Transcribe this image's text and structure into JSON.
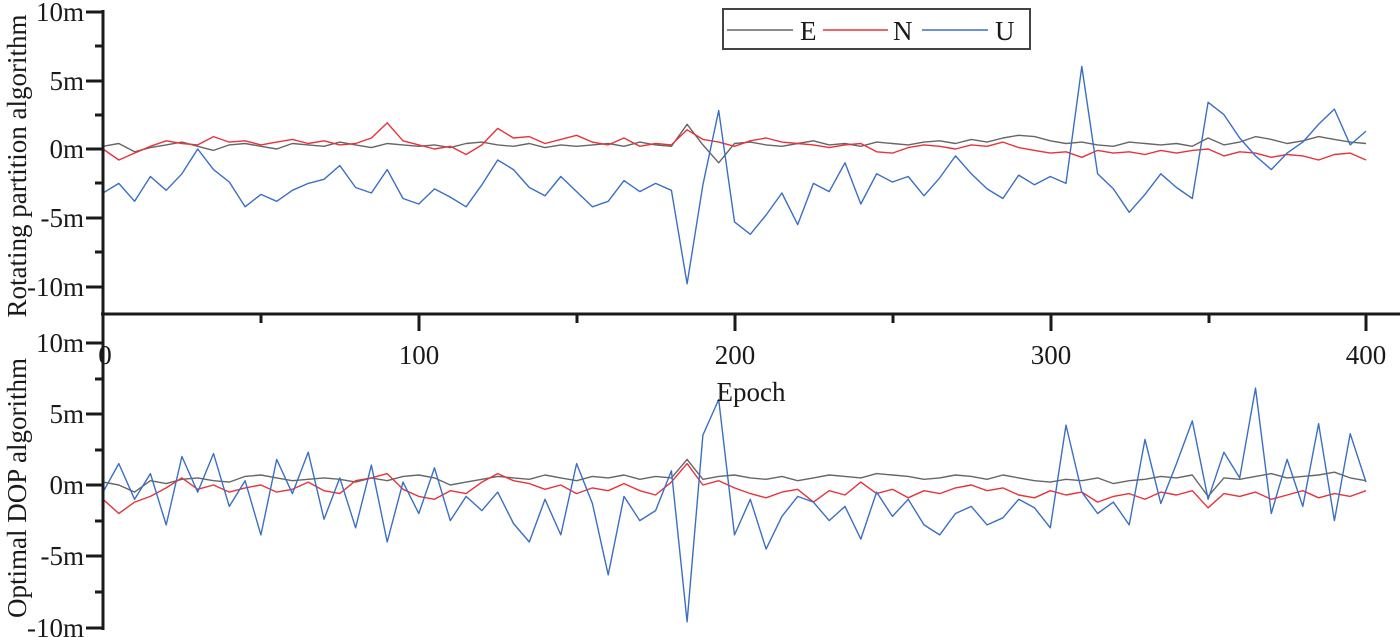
{
  "chart_data": [
    {
      "type": "line",
      "panel": "top",
      "title": "",
      "ylabel": "Rotating partition algorithm",
      "xlabel": "Epoch",
      "xlim": [
        0,
        400
      ],
      "ylim": [
        -12,
        10
      ],
      "yticks": [
        10,
        5,
        0,
        -5,
        -10
      ],
      "ytick_labels": [
        "10m",
        "5m",
        "0m",
        "-5m",
        "-10m"
      ],
      "xticks": [
        0,
        100,
        200,
        300,
        400
      ],
      "xtick_labels": [
        "0",
        "100",
        "200",
        "300",
        "400"
      ],
      "grid": false,
      "legend": {
        "position": "top-center",
        "entries": [
          "E",
          "N",
          "U"
        ]
      },
      "x": [
        0,
        5,
        10,
        15,
        20,
        25,
        30,
        35,
        40,
        45,
        50,
        55,
        60,
        65,
        70,
        75,
        80,
        85,
        90,
        95,
        100,
        105,
        110,
        115,
        120,
        125,
        130,
        135,
        140,
        145,
        150,
        155,
        160,
        165,
        170,
        175,
        180,
        185,
        190,
        195,
        200,
        205,
        210,
        215,
        220,
        225,
        230,
        235,
        240,
        245,
        250,
        255,
        260,
        265,
        270,
        275,
        280,
        285,
        290,
        295,
        300,
        305,
        310,
        315,
        320,
        325,
        330,
        335,
        340,
        345,
        350,
        355,
        360,
        365,
        370,
        375,
        380,
        385,
        390,
        395,
        400
      ],
      "series": [
        {
          "name": "E",
          "color": "#666666",
          "values": [
            0.2,
            0.4,
            -0.2,
            0.1,
            0.3,
            0.5,
            0.2,
            -0.1,
            0.3,
            0.4,
            0.2,
            0.0,
            0.4,
            0.3,
            0.2,
            0.5,
            0.3,
            0.1,
            0.4,
            0.3,
            0.2,
            0.3,
            0.1,
            0.4,
            0.5,
            0.3,
            0.2,
            0.4,
            0.1,
            0.3,
            0.2,
            0.3,
            0.4,
            0.2,
            0.5,
            0.3,
            0.2,
            1.8,
            0.3,
            -1.0,
            0.4,
            0.5,
            0.3,
            0.2,
            0.4,
            0.6,
            0.3,
            0.4,
            0.2,
            0.5,
            0.4,
            0.3,
            0.5,
            0.6,
            0.4,
            0.7,
            0.5,
            0.8,
            1.0,
            0.9,
            0.6,
            0.4,
            0.5,
            0.3,
            0.2,
            0.5,
            0.4,
            0.3,
            0.4,
            0.2,
            0.8,
            0.3,
            0.5,
            0.9,
            0.7,
            0.4,
            0.6,
            0.9,
            0.7,
            0.5,
            0.4
          ]
        },
        {
          "name": "N",
          "color": "#e8333b",
          "values": [
            0.0,
            -0.8,
            -0.3,
            0.2,
            0.6,
            0.4,
            0.3,
            0.9,
            0.5,
            0.6,
            0.3,
            0.5,
            0.7,
            0.4,
            0.6,
            0.3,
            0.4,
            0.8,
            1.9,
            0.6,
            0.3,
            0.0,
            0.2,
            -0.4,
            0.3,
            1.5,
            0.8,
            0.9,
            0.4,
            0.7,
            1.0,
            0.5,
            0.3,
            0.8,
            0.2,
            0.4,
            0.3,
            1.4,
            0.7,
            0.5,
            0.2,
            0.6,
            0.8,
            0.5,
            0.4,
            0.3,
            0.1,
            0.3,
            0.4,
            -0.2,
            -0.3,
            0.1,
            0.3,
            0.2,
            0.0,
            0.3,
            0.2,
            0.5,
            0.1,
            -0.1,
            -0.3,
            -0.2,
            -0.6,
            -0.1,
            -0.3,
            -0.2,
            -0.4,
            -0.1,
            -0.3,
            -0.1,
            0.0,
            -0.5,
            -0.2,
            -0.3,
            -0.6,
            -0.4,
            -0.5,
            -0.8,
            -0.4,
            -0.3,
            -0.8
          ]
        },
        {
          "name": "U",
          "color": "#3a6fc4",
          "values": [
            -3.2,
            -2.5,
            -3.8,
            -2.0,
            -3.0,
            -1.8,
            0.0,
            -1.5,
            -2.4,
            -4.2,
            -3.3,
            -3.8,
            -3.0,
            -2.5,
            -2.2,
            -1.2,
            -2.8,
            -3.2,
            -1.5,
            -3.6,
            -4.0,
            -2.9,
            -3.5,
            -4.2,
            -2.6,
            -0.8,
            -1.5,
            -2.8,
            -3.4,
            -2.0,
            -3.1,
            -4.2,
            -3.8,
            -2.3,
            -3.1,
            -2.5,
            -3.0,
            -9.8,
            -2.6,
            2.8,
            -5.3,
            -6.2,
            -4.8,
            -3.2,
            -5.5,
            -2.5,
            -3.1,
            -1.0,
            -4.0,
            -1.8,
            -2.4,
            -2.0,
            -3.4,
            -2.1,
            -0.5,
            -1.8,
            -2.9,
            -3.6,
            -1.9,
            -2.6,
            -2.0,
            -2.5,
            6.0,
            -1.8,
            -2.9,
            -4.6,
            -3.3,
            -1.8,
            -2.8,
            -3.6,
            3.4,
            2.5,
            0.8,
            -0.5,
            -1.5,
            -0.3,
            0.5,
            1.8,
            2.9,
            0.3,
            1.3
          ]
        }
      ]
    },
    {
      "type": "line",
      "panel": "bottom",
      "title": "",
      "ylabel": "Optimal DOP algorithm",
      "xlabel": "Epoch",
      "xlim": [
        0,
        400
      ],
      "ylim": [
        -10,
        10
      ],
      "yticks": [
        10,
        5,
        0,
        -5,
        -10
      ],
      "ytick_labels": [
        "10m",
        "5m",
        "0m",
        "-5m",
        "-10m"
      ],
      "grid": false,
      "x": [
        0,
        5,
        10,
        15,
        20,
        25,
        30,
        35,
        40,
        45,
        50,
        55,
        60,
        65,
        70,
        75,
        80,
        85,
        90,
        95,
        100,
        105,
        110,
        115,
        120,
        125,
        130,
        135,
        140,
        145,
        150,
        155,
        160,
        165,
        170,
        175,
        180,
        185,
        190,
        195,
        200,
        205,
        210,
        215,
        220,
        225,
        230,
        235,
        240,
        245,
        250,
        255,
        260,
        265,
        270,
        275,
        280,
        285,
        290,
        295,
        300,
        305,
        310,
        315,
        320,
        325,
        330,
        335,
        340,
        345,
        350,
        355,
        360,
        365,
        370,
        375,
        380,
        385,
        390,
        395,
        400
      ],
      "series": [
        {
          "name": "E",
          "color": "#666666",
          "values": [
            0.2,
            0.0,
            -0.5,
            0.3,
            0.1,
            0.4,
            0.5,
            0.3,
            0.2,
            0.6,
            0.7,
            0.5,
            0.3,
            0.4,
            0.5,
            0.4,
            0.2,
            0.5,
            0.3,
            0.6,
            0.7,
            0.5,
            0.0,
            0.2,
            0.4,
            0.6,
            0.5,
            0.4,
            0.7,
            0.5,
            0.3,
            0.6,
            0.5,
            0.7,
            0.4,
            0.6,
            0.5,
            1.8,
            0.4,
            0.6,
            0.7,
            0.5,
            0.4,
            0.6,
            0.3,
            0.5,
            0.7,
            0.6,
            0.5,
            0.8,
            0.7,
            0.6,
            0.4,
            0.5,
            0.7,
            0.6,
            0.4,
            0.7,
            0.5,
            0.3,
            0.2,
            0.4,
            0.3,
            0.5,
            0.1,
            0.3,
            0.4,
            0.6,
            0.5,
            0.7,
            -0.8,
            0.5,
            0.4,
            0.6,
            0.8,
            0.5,
            0.6,
            0.7,
            0.9,
            0.5,
            0.3
          ]
        },
        {
          "name": "N",
          "color": "#e8333b",
          "values": [
            -1.0,
            -2.0,
            -1.2,
            -0.8,
            -0.2,
            0.5,
            -0.3,
            0.0,
            -0.5,
            -0.2,
            0.0,
            -0.5,
            -0.3,
            0.2,
            -0.4,
            -0.6,
            0.3,
            0.5,
            0.8,
            -0.3,
            -0.8,
            -1.0,
            -0.4,
            -0.6,
            0.2,
            0.8,
            0.3,
            0.1,
            -0.3,
            0.0,
            -0.6,
            -0.2,
            -0.4,
            0.1,
            -0.4,
            -0.7,
            0.2,
            1.5,
            0.0,
            0.3,
            -0.2,
            -0.6,
            -0.9,
            -0.5,
            -0.3,
            -1.2,
            -0.4,
            -0.7,
            0.2,
            -0.6,
            -0.3,
            -0.9,
            -0.4,
            -0.6,
            -0.2,
            0.0,
            -0.4,
            -0.2,
            -0.7,
            -0.9,
            -0.4,
            -0.7,
            -0.5,
            -1.2,
            -0.8,
            -0.6,
            -1.0,
            -0.5,
            -0.7,
            -0.4,
            -1.6,
            -0.6,
            -0.8,
            -0.5,
            -1.0,
            -0.7,
            -0.4,
            -0.9,
            -0.6,
            -0.8,
            -0.4
          ]
        },
        {
          "name": "U",
          "color": "#3a6fc4",
          "values": [
            -0.5,
            1.5,
            -1.0,
            0.8,
            -2.8,
            2.0,
            -0.5,
            2.2,
            -1.5,
            0.3,
            -3.5,
            1.8,
            -0.6,
            2.3,
            -2.4,
            0.5,
            -3.0,
            1.4,
            -4.0,
            0.2,
            -2.0,
            1.2,
            -2.5,
            -0.8,
            -1.8,
            -0.5,
            -2.7,
            -4.0,
            -1.0,
            -3.5,
            1.5,
            -1.3,
            -6.3,
            -0.8,
            -2.5,
            -1.8,
            1.0,
            -9.6,
            3.5,
            6.0,
            -3.5,
            -1.0,
            -4.5,
            -2.2,
            -0.8,
            -1.2,
            -2.5,
            -1.5,
            -3.8,
            -0.5,
            -2.2,
            -1.0,
            -2.8,
            -3.5,
            -2.0,
            -1.5,
            -2.8,
            -2.3,
            -1.0,
            -1.6,
            -3.0,
            4.2,
            -0.5,
            -2.0,
            -1.2,
            -2.8,
            3.2,
            -1.3,
            1.5,
            4.5,
            -1.0,
            2.3,
            0.5,
            6.8,
            -2.0,
            1.8,
            -1.5,
            4.3,
            -2.5,
            3.6,
            0.2
          ]
        }
      ]
    }
  ],
  "figure": {
    "top_panel": {
      "ylabel": "Rotating partition algorithm"
    },
    "bottom_panel": {
      "ylabel": "Optimal DOP algorithm"
    },
    "xaxis": {
      "title": "Epoch",
      "ticks": [
        "0",
        "100",
        "200",
        "300",
        "400"
      ]
    },
    "yticks": [
      "10m",
      "5m",
      "0m",
      "-5m",
      "-10m"
    ],
    "legend": {
      "entries": [
        {
          "label": "E",
          "color": "#666666"
        },
        {
          "label": "N",
          "color": "#e8333b"
        },
        {
          "label": "U",
          "color": "#3a6fc4"
        }
      ]
    }
  }
}
